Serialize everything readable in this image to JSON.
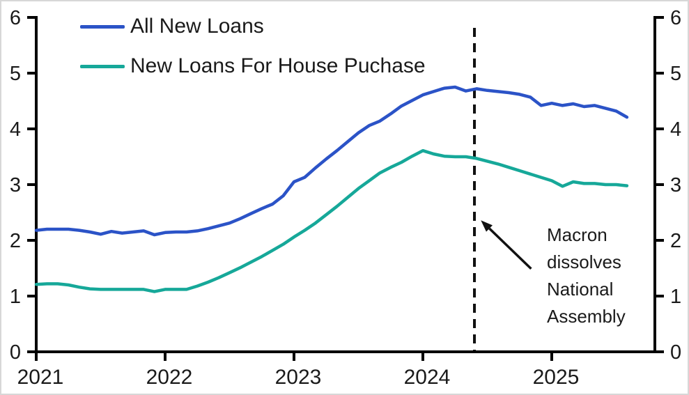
{
  "frame": {
    "background": "#ffffff",
    "border_color": "#d7d7d7",
    "text_color": "#1a1a1a",
    "axes_color": "#000000"
  },
  "chart_data": {
    "type": "line",
    "title": "",
    "xlabel": "",
    "ylabel": "",
    "ylim": [
      0,
      6
    ],
    "grid": false,
    "y_ticks": [
      "0",
      "1",
      "2",
      "3",
      "4",
      "5",
      "6"
    ],
    "y_ticks_both_sides": true,
    "x_tick_years": [
      "2021",
      "2022",
      "2023",
      "2024",
      "2025"
    ],
    "x_start_year": 2021,
    "points_per_year": 12,
    "series": [
      {
        "name": "All New Loans",
        "color": "#2B53C7",
        "values": [
          2.18,
          2.2,
          2.2,
          2.2,
          2.18,
          2.15,
          2.11,
          2.16,
          2.13,
          2.15,
          2.17,
          2.1,
          2.14,
          2.15,
          2.15,
          2.17,
          2.21,
          2.26,
          2.31,
          2.39,
          2.48,
          2.57,
          2.65,
          2.8,
          3.05,
          3.13,
          3.3,
          3.46,
          3.61,
          3.77,
          3.93,
          4.06,
          4.14,
          4.27,
          4.41,
          4.51,
          4.61,
          4.67,
          4.73,
          4.75,
          4.68,
          4.72,
          4.69,
          4.67,
          4.65,
          4.62,
          4.57,
          4.42,
          4.46,
          4.42,
          4.45,
          4.4,
          4.42,
          4.37,
          4.32,
          4.21
        ]
      },
      {
        "name": "New Loans For House Puchase",
        "color": "#16A899",
        "values": [
          1.21,
          1.22,
          1.22,
          1.2,
          1.16,
          1.13,
          1.12,
          1.12,
          1.12,
          1.12,
          1.12,
          1.08,
          1.12,
          1.12,
          1.12,
          1.18,
          1.25,
          1.33,
          1.42,
          1.51,
          1.61,
          1.71,
          1.82,
          1.93,
          2.06,
          2.18,
          2.31,
          2.46,
          2.61,
          2.77,
          2.93,
          3.07,
          3.21,
          3.31,
          3.4,
          3.51,
          3.61,
          3.55,
          3.51,
          3.5,
          3.5,
          3.47,
          3.42,
          3.37,
          3.31,
          3.25,
          3.19,
          3.13,
          3.07,
          2.97,
          3.05,
          3.02,
          3.02,
          3.0,
          3.0,
          2.98
        ]
      }
    ],
    "event_line": {
      "x_year": 2024.4,
      "style": "dashed",
      "color": "#111111"
    },
    "legend_position": "top-left"
  },
  "legend": {
    "items": [
      {
        "label": "All New Loans",
        "color": "#2B53C7"
      },
      {
        "label": "New Loans For House Puchase",
        "color": "#16A899"
      }
    ]
  },
  "annotation": {
    "lines": [
      "Macron",
      "dissolves",
      "National",
      "Assembly"
    ],
    "text": "Macron dissolves National Assembly",
    "arrow": {
      "from": {
        "x_year": 2024.84,
        "value": 1.49
      },
      "to": {
        "x_year": 2024.45,
        "value": 2.36
      }
    }
  }
}
